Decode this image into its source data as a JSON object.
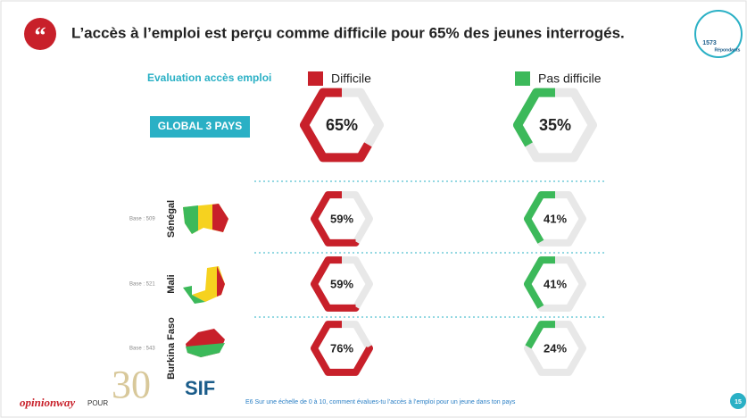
{
  "header": {
    "title": "L’accès à l’emploi est perçu comme difficile pour 65% des jeunes interrogés.",
    "respondents": "1573",
    "respondents_label": "Répondants"
  },
  "chart_data": {
    "type": "hexagon-gauge",
    "subtitle": "Evaluation accès emploi",
    "categories": [
      "GLOBAL 3 PAYS",
      "Sénégal",
      "Mali",
      "Burkina Faso"
    ],
    "bases": [
      null,
      "Base : 509",
      "Base : 521",
      "Base : 543"
    ],
    "series": [
      {
        "name": "Difficile",
        "color": "#c8202a",
        "values": [
          65,
          59,
          59,
          76
        ],
        "value_labels": [
          "65%",
          "59%",
          "59%",
          "76%"
        ]
      },
      {
        "name": "Pas difficile",
        "color": "#3cb95a",
        "values": [
          35,
          41,
          41,
          24
        ],
        "value_labels": [
          "35%",
          "41%",
          "41%",
          "24%"
        ]
      }
    ]
  },
  "footer": {
    "brand": "opinionway",
    "for": "POUR",
    "logo_number": "30",
    "logo_text": "SIF",
    "question": "E6 Sur une échelle de 0 à 10, comment évalues-tu l’accès à l’emploi pour un jeune dans ton pays",
    "page": "15"
  }
}
